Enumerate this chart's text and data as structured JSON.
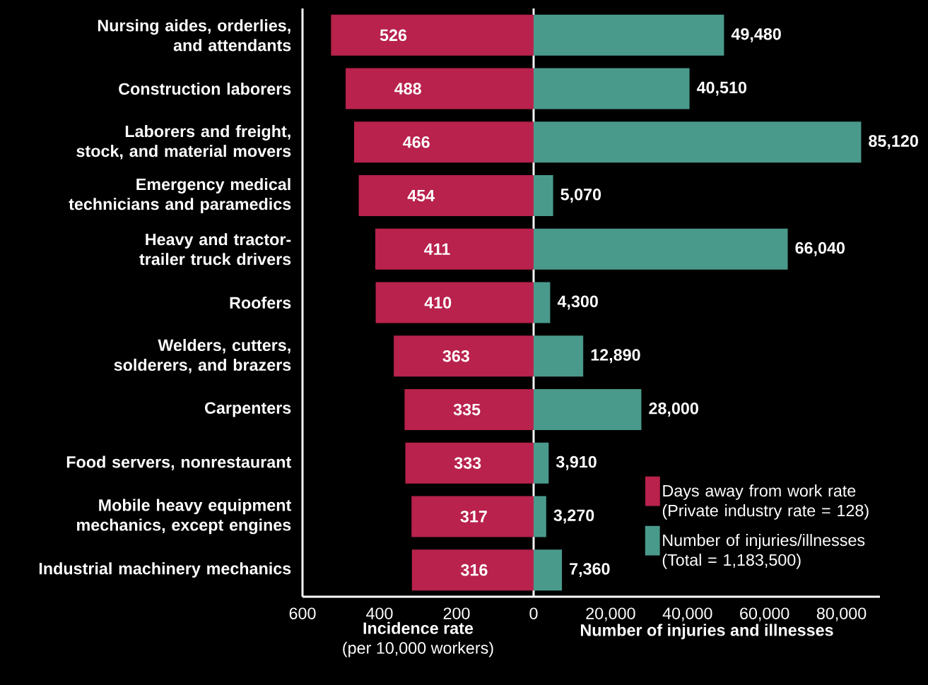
{
  "chart_data": [
    {
      "type": "bar",
      "orientation": "horizontal",
      "xlabel": "Incidence rate",
      "annotations": [
        "(per 10,000 workers)"
      ],
      "categories": [
        "Nursing aides, orderlies, and attendants",
        "Construction laborers",
        "Laborers and freight, stock, and material movers",
        "Emergency medical technicians and paramedics",
        "Heavy and tractor-trailer truck drivers",
        "Roofers",
        "Welders, cutters, solderers, and brazers",
        "Carpenters",
        "Food servers, nonrestaurant",
        "Mobile heavy equipment mechanics, except engines",
        "Industrial machinery mechanics"
      ],
      "series": [
        {
          "name": "Days away from work rate (Private industry rate = 128)",
          "color": "#b8224c",
          "values": [
            526,
            488,
            466,
            454,
            411,
            410,
            363,
            335,
            333,
            317,
            316
          ],
          "value_labels": [
            "526",
            "488",
            "466",
            "454",
            "411",
            "410",
            "363",
            "335",
            "333",
            "317",
            "316"
          ]
        }
      ],
      "xlim": [
        600,
        0
      ],
      "xticks": [
        600,
        400,
        200,
        0
      ],
      "legend": "bottom right"
    },
    {
      "type": "bar",
      "orientation": "horizontal",
      "xlabel": "Number of injuries and illnesses",
      "categories": [
        null,
        null,
        null,
        null,
        null,
        null,
        null,
        null,
        null,
        null,
        null
      ],
      "series": [
        {
          "name": "Number of injuries/illnesses (Total = 1,183,500)",
          "color": "#4a9a8c",
          "values": [
            49480,
            40510,
            85120,
            5070,
            66040,
            4300,
            12890,
            28000,
            3910,
            3270,
            7360
          ],
          "value_labels": [
            "49,480",
            "40,510",
            "85,120",
            "5,070",
            "66,040",
            "4,300",
            "12,890",
            "28,000",
            "3,910",
            "3,270",
            "7,360"
          ]
        }
      ],
      "xlim": [
        0,
        90000
      ],
      "xticks": [
        {
          "value": 20000,
          "label": "20,000"
        },
        {
          "value": 40000,
          "label": "40,000"
        },
        {
          "value": 60000,
          "label": "60,000"
        },
        {
          "value": 80000,
          "label": "80,000"
        }
      ],
      "tick_labels": "x",
      "legend": "bottom right"
    }
  ]
}
